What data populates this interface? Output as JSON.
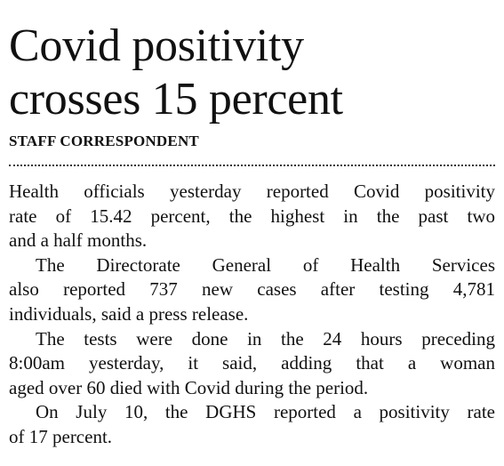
{
  "headline": {
    "lines": [
      "Covid positivity",
      "crosses 15 percent"
    ]
  },
  "byline": "STAFF CORRESPONDENT",
  "body": {
    "paragraphs": [
      [
        "Health officials yesterday reported Covid positivity",
        "rate of 15.42 percent, the highest in the past two",
        "and a half months."
      ],
      [
        "The Directorate General of Health Services",
        "also reported 737 new cases after testing 4,781",
        "individuals, said a press release."
      ],
      [
        "The tests were done in the 24 hours preceding",
        "8:00am yesterday, it said, adding that a woman",
        "aged over 60 died with Covid during the period."
      ],
      [
        "On July 10, the DGHS reported a positivity rate",
        "of 17 percent."
      ]
    ]
  }
}
